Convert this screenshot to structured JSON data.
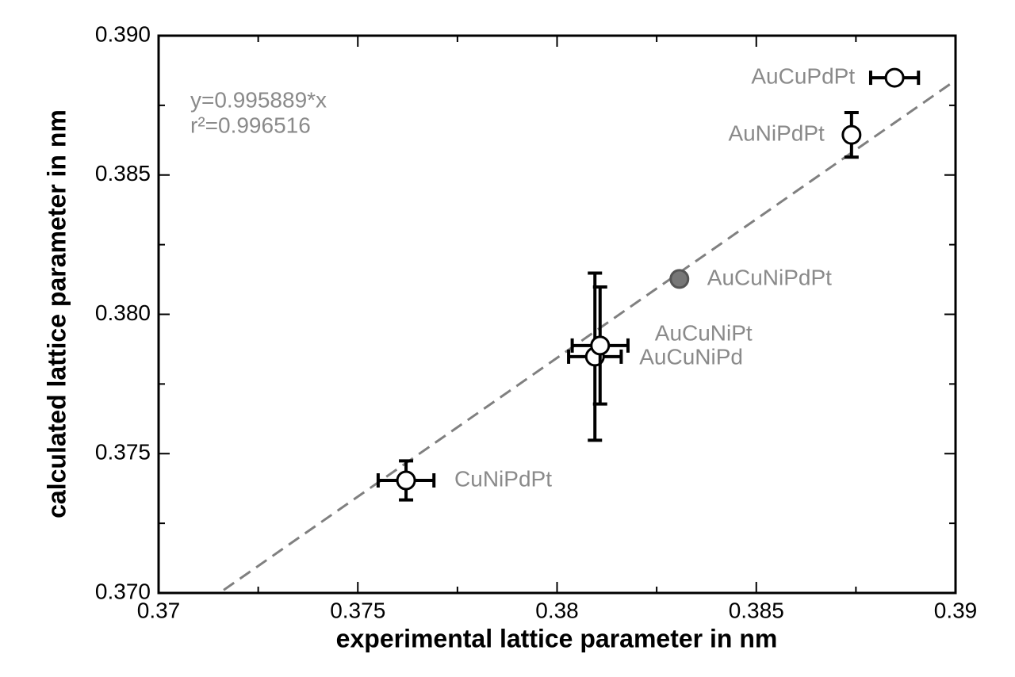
{
  "chart_data": {
    "type": "scatter",
    "xlabel": "experimental lattice parameter in nm",
    "ylabel": "calculated lattice parameter in nm",
    "xlim": [
      0.37,
      0.39
    ],
    "ylim": [
      0.37,
      0.39
    ],
    "xticks": [
      0.37,
      0.375,
      0.38,
      0.385,
      0.39
    ],
    "yticks": [
      {
        "value": 0.37,
        "label": "0.370"
      },
      0.375,
      {
        "value": 0.38,
        "label": "0.380"
      },
      0.385,
      {
        "value": 0.39,
        "label": "0.390"
      }
    ],
    "xminorticks": [
      0.3725,
      0.3775,
      0.3825,
      0.3875
    ],
    "yminorticks": [
      0.3725,
      0.3775,
      0.3825,
      0.3875
    ],
    "fit": {
      "slope": 0.995889,
      "color": "#808080"
    },
    "annotations": [
      "y=0.995889*x",
      "r²=0.996516"
    ],
    "points": [
      {
        "name": "CuNiPdPt",
        "x": 0.37621,
        "y": 0.37404,
        "xerr": 0.0007,
        "yerr": 0.0007,
        "color": "#ffffff"
      },
      {
        "name": "AuCuNiPd",
        "x": 0.38095,
        "y": 0.37848,
        "xerr": 0.00066,
        "yerr": 0.003,
        "color": "#ffffff"
      },
      {
        "name": "AuCuNiPt",
        "x": 0.38108,
        "y": 0.37888,
        "xerr": 0.0007,
        "yerr": 0.0021,
        "color": "#ffffff"
      },
      {
        "name": "AuCuNiPdPt",
        "x": 0.38307,
        "y": 0.38127,
        "xerr": null,
        "yerr": null,
        "color": "#777777"
      },
      {
        "name": "AuNiPdPt",
        "x": 0.38739,
        "y": 0.38644,
        "xerr": null,
        "yerr": 0.0008,
        "color": "#ffffff"
      },
      {
        "name": "AuCuPdPt",
        "x": 0.38847,
        "y": 0.38849,
        "xerr": 0.0006,
        "yerr": null,
        "color": "#ffffff"
      }
    ]
  }
}
